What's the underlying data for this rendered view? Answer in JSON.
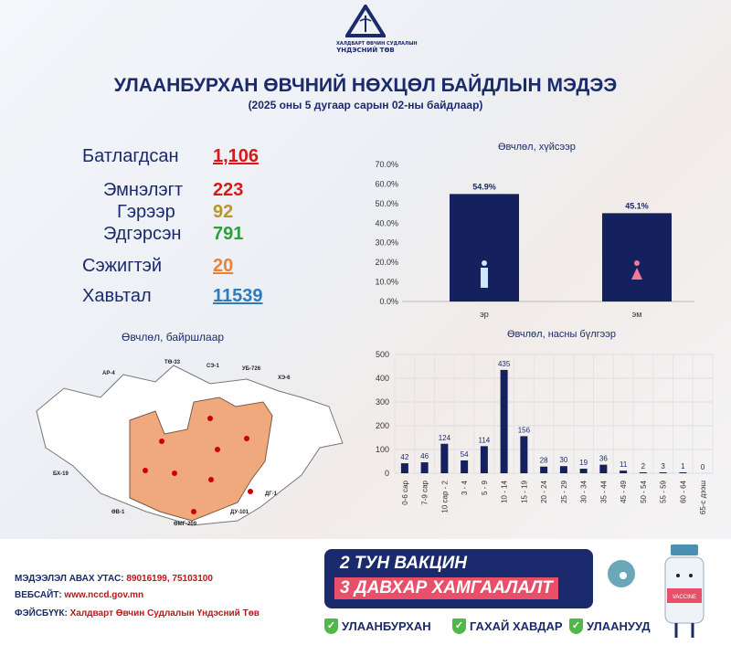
{
  "logo": {
    "line1": "ХАЛДВАРТ ӨВЧИН СУДЛАЛЫН",
    "line2": "ҮНДЭСНИЙ ТӨВ"
  },
  "header": {
    "title": "УЛААНБУРХАН ӨВЧНИЙ НӨХЦӨЛ БАЙДЛЫН МЭДЭЭ",
    "subtitle": "(2025 оны 5 дугаар сарын 02-ны байдлаар)"
  },
  "stats": [
    {
      "label": "Батлагдсан",
      "value": "1,106",
      "color": "#d7191c"
    },
    {
      "label": "Эмнэлэгт",
      "value": "223",
      "color": "#d7191c"
    },
    {
      "label": "Гэрээр",
      "value": "92",
      "color": "#b8962e"
    },
    {
      "label": "Эдгэрсэн",
      "value": "791",
      "color": "#2e9e3e"
    },
    {
      "label": "Сэжигтэй",
      "value": "20",
      "color": "#e8823c"
    },
    {
      "label": "Хавьтал",
      "value": "11539",
      "color": "#2b7bc0"
    }
  ],
  "map": {
    "title": "Өвчлөл, байршлаар",
    "labels": [
      "АР-4",
      "ТӨ-33",
      "СЭ-1",
      "УБ-726",
      "ХЭ-6",
      "БХ-19",
      "ӨВ-1",
      "ӨМГ-209",
      "ДУ-101",
      "ДГ-1"
    ],
    "fill": "#f0a97c"
  },
  "chart_data": [
    {
      "type": "bar",
      "title": "Өвчлөл, хүйсээр",
      "categories": [
        "эр",
        "эм"
      ],
      "values": [
        54.9,
        45.1
      ],
      "data_labels": [
        "54.9%",
        "45.1%"
      ],
      "ylim": [
        0,
        70
      ],
      "yticks": [
        "0.0%",
        "10.0%",
        "20.0%",
        "30.0%",
        "40.0%",
        "50.0%",
        "60.0%",
        "70.0%"
      ],
      "icons": [
        "male-icon",
        "female-icon"
      ],
      "color": "#14215e",
      "grid": false
    },
    {
      "type": "bar",
      "title": "Өвчлөл, насны бүлгээр",
      "categories": [
        "0-6 сар",
        "7-9 сар",
        "10 сар - 2",
        "3 - 4",
        "5 - 9",
        "10 - 14",
        "15 - 19",
        "20 - 24",
        "25 - 29",
        "30 - 34",
        "35 - 44",
        "45 - 49",
        "50 - 54",
        "55 - 59",
        "60 - 64",
        "65-с дээш"
      ],
      "values": [
        42,
        46,
        124,
        54,
        114,
        435,
        156,
        28,
        30,
        19,
        36,
        11,
        2,
        3,
        1,
        0
      ],
      "ylim": [
        0,
        500
      ],
      "yticks": [
        "0",
        "100",
        "200",
        "300",
        "400",
        "500"
      ],
      "color": "#14215e",
      "grid": true
    }
  ],
  "footer": {
    "phone_label": "МЭДЭЭЛЭЛ АВАХ УТАС:",
    "phone": "89016199,  75103100",
    "web_label": "ВЕБСАЙТ:",
    "web": "www.nccd.gov.mn",
    "fb_label": "ФЭЙСБҮҮК:",
    "fb": "Халдварт Өвчин Судлалын Үндэсний Төв"
  },
  "banner": {
    "line1": "2 ТУН ВАКЦИН",
    "line2": "3 ДАВХАР ХАМГААЛАЛТ",
    "checks": [
      "УЛААНБУРХАН",
      "ГАХАЙ ХАВДАР",
      "УЛААНУУД"
    ],
    "vial_label": "VACCINE"
  }
}
